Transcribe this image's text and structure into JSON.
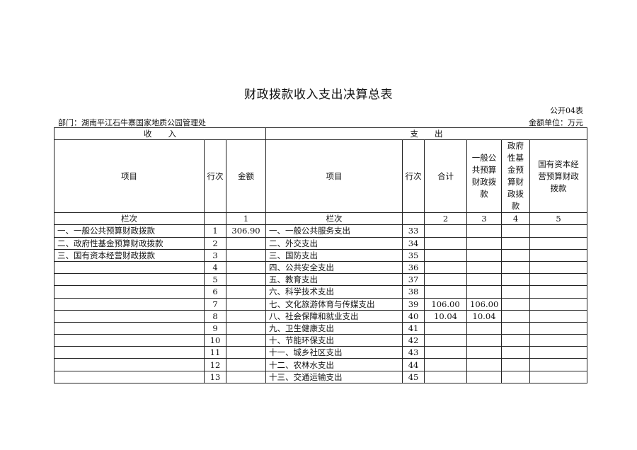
{
  "title": "财政拨款收入支出决算总表",
  "form_no": "公开04表",
  "department": "部门：湖南平江石牛寨国家地质公园管理处",
  "unit": "金额单位：万元",
  "sections": {
    "income": "收　　入",
    "expense": "支　　出"
  },
  "headers": {
    "income_item": "项目",
    "income_line": "行次",
    "income_amount": "金额",
    "expense_item": "项目",
    "expense_line": "行次",
    "total": "合计",
    "general_budget": "一般公共预算财政拨款",
    "gov_fund": "政府性基金预算财政拨款",
    "state_capital": "国有资本经营预算财政拨款"
  },
  "column_index_row": {
    "label_left": "栏次",
    "c1": "1",
    "label_right": "栏次",
    "c2": "2",
    "c3": "3",
    "c4": "4",
    "c5": "5"
  },
  "rows": [
    {
      "income_item": "一、一般公共预算财政拨款",
      "line": "1",
      "amount": "306.90",
      "expense_item": "一、一般公共服务支出",
      "eline": "33",
      "total": "",
      "general": "",
      "fund": "",
      "capital": ""
    },
    {
      "income_item": "二、政府性基金预算财政拨款",
      "line": "2",
      "amount": "",
      "expense_item": "二、外交支出",
      "eline": "34",
      "total": "",
      "general": "",
      "fund": "",
      "capital": ""
    },
    {
      "income_item": "三、国有资本经营财政拨款",
      "line": "3",
      "amount": "",
      "expense_item": "三、国防支出",
      "eline": "35",
      "total": "",
      "general": "",
      "fund": "",
      "capital": ""
    },
    {
      "income_item": "",
      "line": "4",
      "amount": "",
      "expense_item": "四、公共安全支出",
      "eline": "36",
      "total": "",
      "general": "",
      "fund": "",
      "capital": ""
    },
    {
      "income_item": "",
      "line": "5",
      "amount": "",
      "expense_item": "五、教育支出",
      "eline": "37",
      "total": "",
      "general": "",
      "fund": "",
      "capital": ""
    },
    {
      "income_item": "",
      "line": "6",
      "amount": "",
      "expense_item": "六、科学技术支出",
      "eline": "38",
      "total": "",
      "general": "",
      "fund": "",
      "capital": ""
    },
    {
      "income_item": "",
      "line": "7",
      "amount": "",
      "expense_item": "七、文化旅游体育与传媒支出",
      "eline": "39",
      "total": "106.00",
      "general": "106.00",
      "fund": "",
      "capital": ""
    },
    {
      "income_item": "",
      "line": "8",
      "amount": "",
      "expense_item": "八、社会保障和就业支出",
      "eline": "40",
      "total": "10.04",
      "general": "10.04",
      "fund": "",
      "capital": ""
    },
    {
      "income_item": "",
      "line": "9",
      "amount": "",
      "expense_item": "九、卫生健康支出",
      "eline": "41",
      "total": "",
      "general": "",
      "fund": "",
      "capital": ""
    },
    {
      "income_item": "",
      "line": "10",
      "amount": "",
      "expense_item": "十、节能环保支出",
      "eline": "42",
      "total": "",
      "general": "",
      "fund": "",
      "capital": ""
    },
    {
      "income_item": "",
      "line": "11",
      "amount": "",
      "expense_item": "十一、城乡社区支出",
      "eline": "43",
      "total": "",
      "general": "",
      "fund": "",
      "capital": ""
    },
    {
      "income_item": "",
      "line": "12",
      "amount": "",
      "expense_item": "十二、农林水支出",
      "eline": "44",
      "total": "",
      "general": "",
      "fund": "",
      "capital": ""
    },
    {
      "income_item": "",
      "line": "13",
      "amount": "",
      "expense_item": "十三、交通运输支出",
      "eline": "45",
      "total": "",
      "general": "",
      "fund": "",
      "capital": ""
    }
  ]
}
